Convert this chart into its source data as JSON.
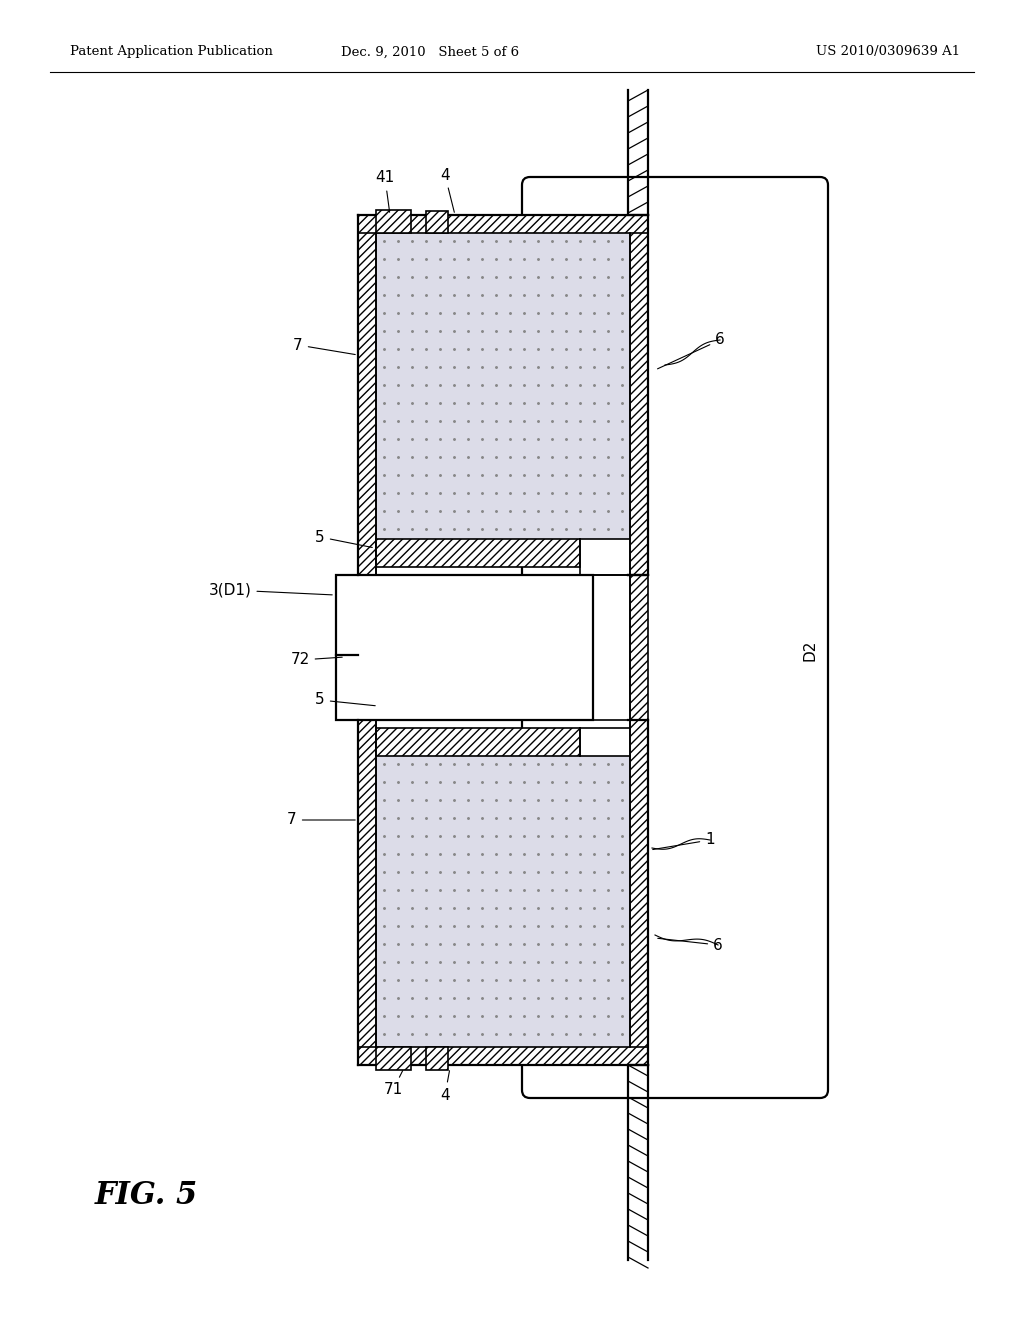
{
  "bg_color": "#ffffff",
  "header_left": "Patent Application Publication",
  "header_mid": "Dec. 9, 2010   Sheet 5 of 6",
  "header_right": "US 2010/0309639 A1",
  "fig_label": "FIG. 5",
  "hatch_pattern": "////",
  "inner_fill": "#dcdce8",
  "lw_main": 1.6,
  "lw_shell": 1.2,
  "fs_label": 11,
  "fs_header": 9.5
}
